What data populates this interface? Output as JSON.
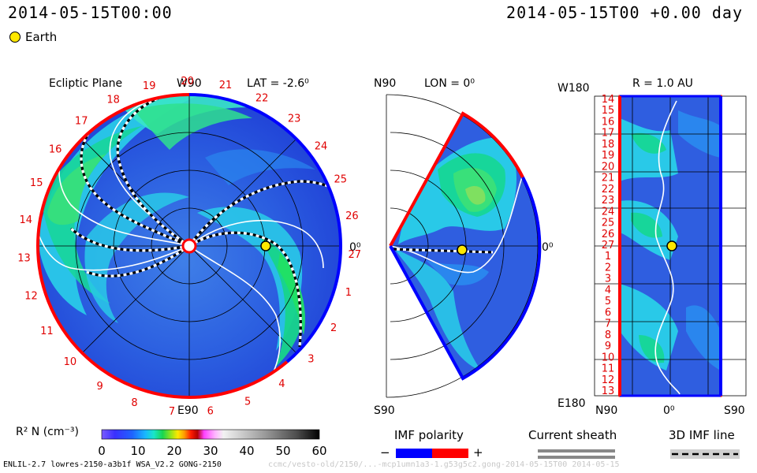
{
  "header": {
    "time_left": "2014-05-15T00:00",
    "time_right": "2014-05-15T00 +0.00 day"
  },
  "legend": {
    "earth_label": "Earth",
    "earth_color": "#ffe800"
  },
  "ecliptic": {
    "title": "Ecliptic Plane",
    "top_label": "W90",
    "bottom_label": "E90",
    "right_label": "0⁰",
    "lat_label": "LAT = -2.6⁰",
    "rotation_numbers": [
      "19",
      "20",
      "21",
      "22",
      "23",
      "24",
      "25",
      "26",
      "27",
      "1",
      "2",
      "3",
      "4",
      "5",
      "6",
      "7",
      "8",
      "9",
      "10",
      "11",
      "12",
      "13",
      "14",
      "15",
      "16",
      "17",
      "18"
    ]
  },
  "meridional": {
    "top_label": "N90",
    "bottom_label": "S90",
    "lon_label": "LON = 0⁰",
    "right_label": "0⁰"
  },
  "radial": {
    "r_label": "R = 1.0 AU",
    "top_left": "W180",
    "bottom_left": "E180",
    "bottom_n": "N90",
    "bottom_zero": "0⁰",
    "bottom_s": "S90",
    "rows": [
      "14",
      "15",
      "16",
      "17",
      "18",
      "19",
      "20",
      "21",
      "22",
      "23",
      "24",
      "25",
      "26",
      "27",
      "1",
      "2",
      "3",
      "4",
      "5",
      "6",
      "7",
      "8",
      "9",
      "10",
      "11",
      "12",
      "13"
    ]
  },
  "colorbar": {
    "label": "R² N (cm⁻³)",
    "ticks": [
      "0",
      "10",
      "20",
      "30",
      "40",
      "50",
      "60"
    ]
  },
  "imf": {
    "title": "IMF polarity",
    "minus": "−",
    "plus": "+",
    "neg_color": "#0000ff",
    "pos_color": "#ff0000"
  },
  "sheath": {
    "title": "Current sheath"
  },
  "imf3d": {
    "title": "3D IMF line"
  },
  "footer": {
    "left": "ENLIL-2.7 lowres-2150-a3b1f WSA_V2.2 GONG-2150",
    "right": "ccmc/vesto-old/2150/...-mcp1umn1a3-1.g53g5c2.gong-2014-05-15T00    2014-05-15"
  }
}
